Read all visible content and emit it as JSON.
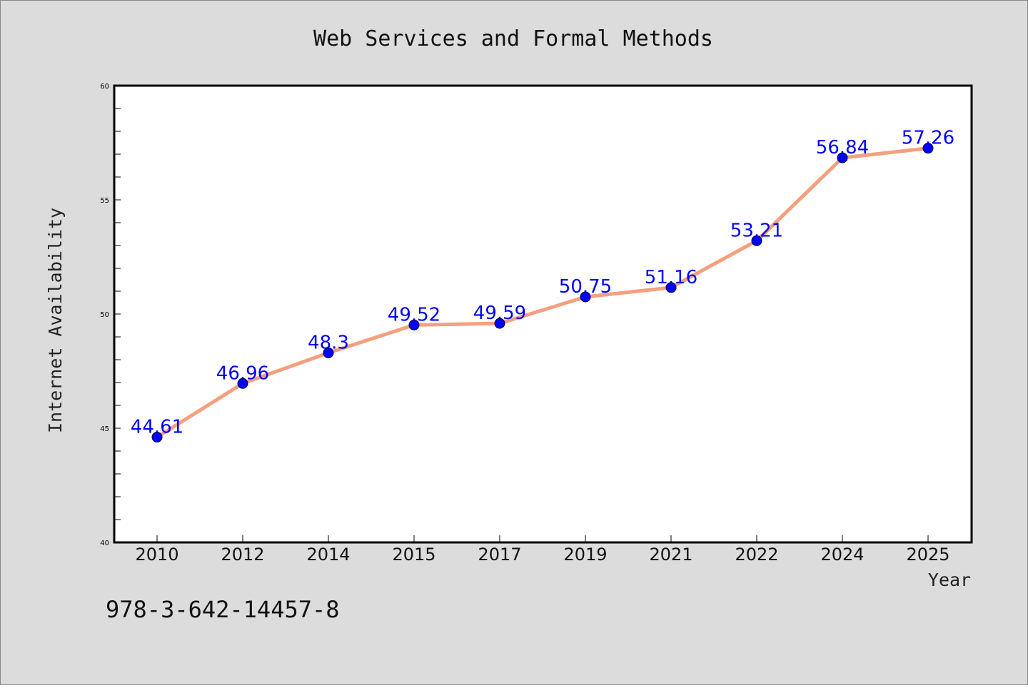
{
  "colors": {
    "background": "#dcdcdc",
    "plot_background": "#ffffff",
    "line": "#f4a07e",
    "marker": "#0000ff",
    "data_label": "#0000ff"
  },
  "annotation": "978-3-642-14457-8",
  "chart_data": {
    "type": "line",
    "title": "Web Services and Formal Methods",
    "xlabel": "Year",
    "ylabel": "Internet Availability",
    "categories": [
      "2010",
      "2012",
      "2014",
      "2015",
      "2017",
      "2019",
      "2021",
      "2022",
      "2024",
      "2025"
    ],
    "series": [
      {
        "values": [
          44.61,
          46.96,
          48.3,
          49.52,
          49.59,
          50.75,
          51.16,
          53.21,
          56.84,
          57.26
        ],
        "labels": [
          "44.61",
          "46.96",
          "48.3",
          "49.52",
          "49.59",
          "50.75",
          "51.16",
          "53.21",
          "56.84",
          "57.26"
        ]
      }
    ],
    "ylim": [
      40,
      60
    ],
    "yticks": [
      40,
      45,
      50,
      55,
      60
    ],
    "yminor_step": 1,
    "grid": false,
    "legend": "none",
    "marker": "circle"
  }
}
